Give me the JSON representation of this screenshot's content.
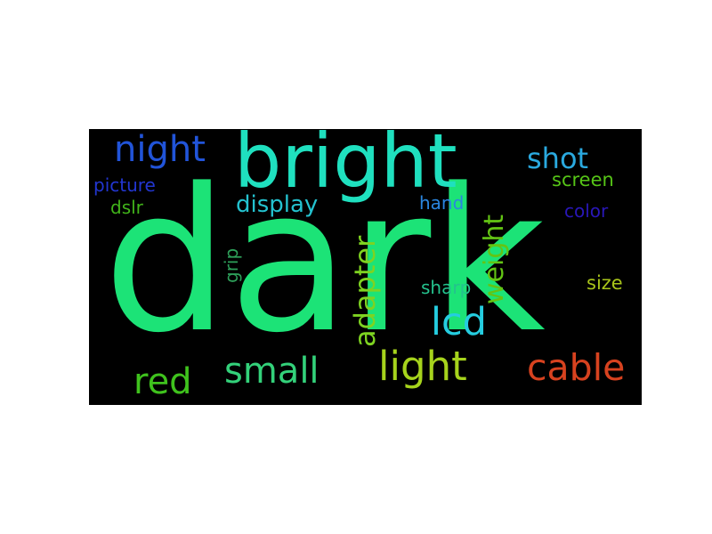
{
  "wordcloud": {
    "background": "#000000",
    "words": [
      {
        "text": "dark",
        "color": "#1ce377"
      },
      {
        "text": "bright",
        "color": "#1fe0bf"
      },
      {
        "text": "night",
        "color": "#2154d9"
      },
      {
        "text": "shot",
        "color": "#2aa9df"
      },
      {
        "text": "picture",
        "color": "#2236d1"
      },
      {
        "text": "screen",
        "color": "#56c417"
      },
      {
        "text": "dslr",
        "color": "#41b41a"
      },
      {
        "text": "display",
        "color": "#24c2cf"
      },
      {
        "text": "hand",
        "color": "#2a86e0"
      },
      {
        "text": "color",
        "color": "#2917b8"
      },
      {
        "text": "grip",
        "color": "#2ea05a"
      },
      {
        "text": "adapter",
        "color": "#7ed321"
      },
      {
        "text": "weight",
        "color": "#63c414"
      },
      {
        "text": "sharp",
        "color": "#24c28d"
      },
      {
        "text": "size",
        "color": "#a8c41a"
      },
      {
        "text": "lcd",
        "color": "#25cde0"
      },
      {
        "text": "red",
        "color": "#3fc21d"
      },
      {
        "text": "small",
        "color": "#33d17a"
      },
      {
        "text": "light",
        "color": "#a6d31c"
      },
      {
        "text": "cable",
        "color": "#d7421f"
      }
    ]
  }
}
